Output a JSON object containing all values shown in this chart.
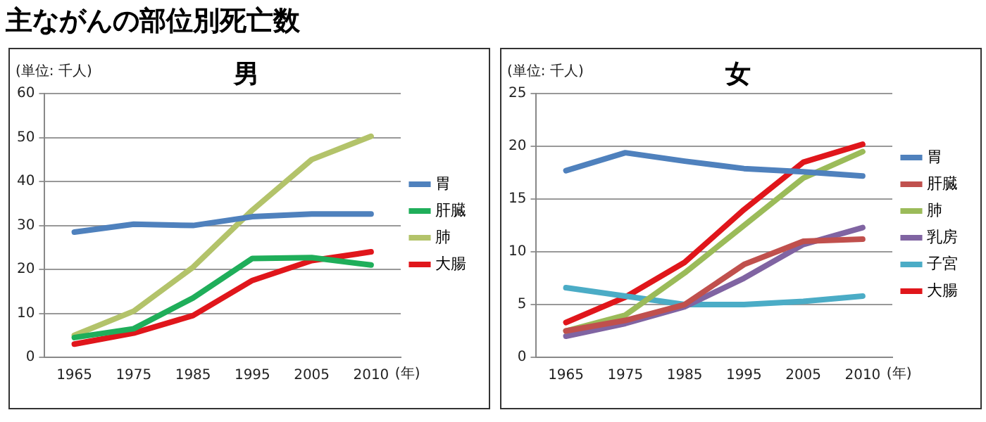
{
  "chart_data": [
    {
      "type": "line",
      "title": "男",
      "ylabel": "(単位: 千人)",
      "xlabel": "(年)",
      "annotations": [
        "主ながんの部位別死亡数"
      ],
      "categories": [
        "1965",
        "1975",
        "1985",
        "1995",
        "2005",
        "2010"
      ],
      "series": [
        {
          "name": "胃",
          "color": "#4f81bd",
          "values": [
            28.5,
            30.3,
            30,
            32,
            32.6,
            32.6
          ]
        },
        {
          "name": "肝臓",
          "color": "#1fae5a",
          "values": [
            4.5,
            6.5,
            13.5,
            22.5,
            22.7,
            21
          ]
        },
        {
          "name": "肺",
          "color": "#b3c36a",
          "values": [
            5,
            10.5,
            20.5,
            33.5,
            45,
            50.3
          ]
        },
        {
          "name": "大腸",
          "color": "#e0161b",
          "values": [
            3,
            5.5,
            9.5,
            17.5,
            22,
            24
          ]
        }
      ],
      "ylim": [
        0,
        60
      ],
      "yticks": [
        0,
        10,
        20,
        30,
        40,
        50,
        60
      ],
      "grid": "y",
      "legend": "right",
      "marker": "none",
      "line_style": "solid"
    },
    {
      "type": "line",
      "title": "女",
      "ylabel": "(単位: 千人)",
      "xlabel": "(年)",
      "categories": [
        "1965",
        "1975",
        "1985",
        "1995",
        "2005",
        "2010"
      ],
      "series": [
        {
          "name": "胃",
          "color": "#4f81bd",
          "values": [
            17.7,
            19.4,
            18.6,
            17.9,
            17.6,
            17.2
          ]
        },
        {
          "name": "肝臓",
          "color": "#c0504d",
          "values": [
            2.5,
            3.5,
            5,
            8.8,
            11,
            11.2
          ]
        },
        {
          "name": "肺",
          "color": "#9bbb59",
          "values": [
            2.5,
            4,
            8,
            12.5,
            17,
            19.5
          ]
        },
        {
          "name": "乳房",
          "color": "#8064a2",
          "values": [
            2,
            3.2,
            4.8,
            7.5,
            10.7,
            12.3
          ]
        },
        {
          "name": "子宮",
          "color": "#4bacc6",
          "values": [
            6.6,
            5.8,
            5,
            5,
            5.3,
            5.8
          ]
        },
        {
          "name": "大腸",
          "color": "#e0161b",
          "values": [
            3.3,
            5.7,
            9,
            14,
            18.5,
            20.2
          ]
        }
      ],
      "ylim": [
        0,
        25
      ],
      "yticks": [
        0,
        5,
        10,
        15,
        20,
        25
      ],
      "grid": "y",
      "legend": "right",
      "marker": "none",
      "line_style": "solid"
    }
  ]
}
